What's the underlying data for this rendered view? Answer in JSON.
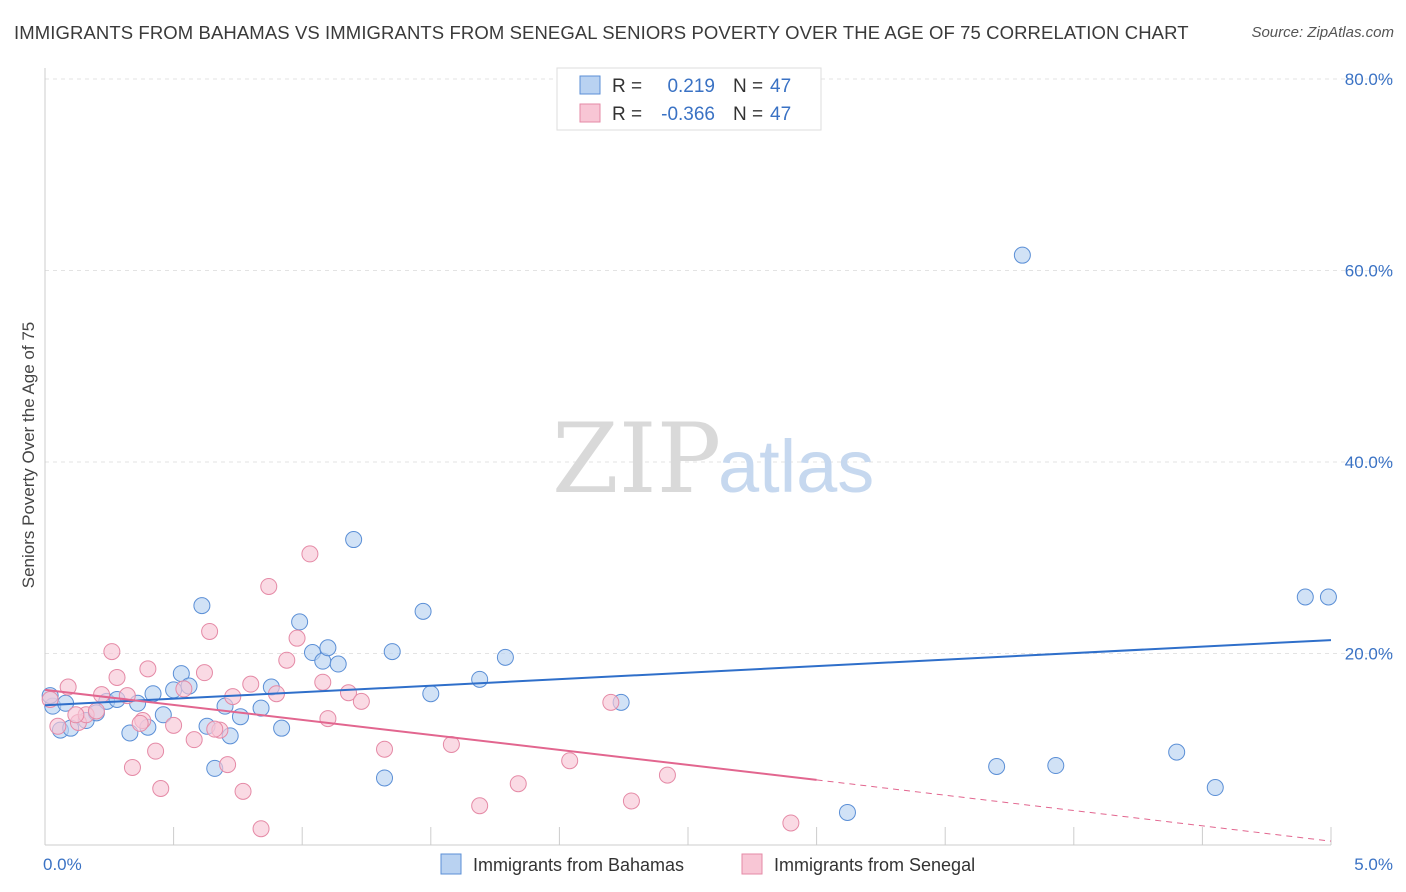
{
  "header": {
    "title": "IMMIGRANTS FROM BAHAMAS VS IMMIGRANTS FROM SENEGAL SENIORS POVERTY OVER THE AGE OF 75 CORRELATION CHART",
    "source": "Source: ZipAtlas.com"
  },
  "watermark": {
    "zip": "ZIP",
    "atlas": "atlas"
  },
  "legend": {
    "r_label": "R =",
    "n_label": "N =",
    "rows": [
      {
        "series": "Immigrants from Bahamas",
        "r": "0.219",
        "n": "47"
      },
      {
        "series": "Immigrants from Senegal",
        "r": "-0.366",
        "n": "47"
      }
    ]
  },
  "chart_data": {
    "type": "scatter",
    "title": "IMMIGRANTS FROM BAHAMAS VS IMMIGRANTS FROM SENEGAL SENIORS POVERTY OVER THE AGE OF 75 CORRELATION CHART",
    "xlabel": "",
    "ylabel": "Seniors Poverty Over the Age of 75",
    "xlim": [
      0,
      5
    ],
    "ylim": [
      0,
      80
    ],
    "x_tick_labels": [
      "0.0%",
      "5.0%"
    ],
    "y_ticks": [
      20,
      40,
      60,
      80
    ],
    "y_tick_labels": [
      "20.0%",
      "40.0%",
      "60.0%",
      "80.0%"
    ],
    "grid": true,
    "legend_position": "top-center",
    "series": [
      {
        "name": "Immigrants from Bahamas",
        "color": "#5b8fd6",
        "fill": "#b9d2f1",
        "points": [
          [
            0.03,
            14.5
          ],
          [
            0.06,
            12.0
          ],
          [
            0.08,
            14.8
          ],
          [
            0.1,
            12.2
          ],
          [
            0.16,
            13.0
          ],
          [
            0.2,
            13.8
          ],
          [
            0.24,
            15.0
          ],
          [
            0.28,
            15.2
          ],
          [
            0.33,
            11.7
          ],
          [
            0.36,
            14.8
          ],
          [
            0.4,
            12.3
          ],
          [
            0.42,
            15.8
          ],
          [
            0.46,
            13.6
          ],
          [
            0.5,
            16.2
          ],
          [
            0.53,
            17.9
          ],
          [
            0.56,
            16.6
          ],
          [
            0.61,
            25.0
          ],
          [
            0.63,
            12.4
          ],
          [
            0.66,
            8.0
          ],
          [
            0.7,
            14.5
          ],
          [
            0.72,
            11.4
          ],
          [
            0.76,
            13.4
          ],
          [
            0.84,
            14.3
          ],
          [
            0.88,
            16.5
          ],
          [
            0.92,
            12.2
          ],
          [
            0.99,
            23.3
          ],
          [
            1.04,
            20.1
          ],
          [
            1.08,
            19.2
          ],
          [
            1.1,
            20.6
          ],
          [
            1.14,
            18.9
          ],
          [
            1.2,
            31.9
          ],
          [
            1.32,
            7.0
          ],
          [
            1.35,
            20.2
          ],
          [
            1.47,
            24.4
          ],
          [
            1.5,
            15.8
          ],
          [
            1.69,
            17.3
          ],
          [
            1.79,
            19.6
          ],
          [
            2.24,
            14.9
          ],
          [
            3.12,
            3.4
          ],
          [
            3.8,
            61.6
          ],
          [
            3.7,
            8.2
          ],
          [
            3.93,
            8.3
          ],
          [
            4.4,
            9.7
          ],
          [
            4.55,
            6.0
          ],
          [
            4.9,
            25.9
          ],
          [
            4.99,
            25.9
          ],
          [
            0.02,
            15.6
          ]
        ]
      },
      {
        "name": "Immigrants from Senegal",
        "color": "#e58aa6",
        "fill": "#f8c6d5",
        "points": [
          [
            0.02,
            15.2
          ],
          [
            0.05,
            12.4
          ],
          [
            0.09,
            16.5
          ],
          [
            0.13,
            12.8
          ],
          [
            0.16,
            13.6
          ],
          [
            0.2,
            14.0
          ],
          [
            0.22,
            15.7
          ],
          [
            0.26,
            20.2
          ],
          [
            0.28,
            17.5
          ],
          [
            0.32,
            15.6
          ],
          [
            0.34,
            8.1
          ],
          [
            0.38,
            13.0
          ],
          [
            0.4,
            18.4
          ],
          [
            0.43,
            9.8
          ],
          [
            0.45,
            5.9
          ],
          [
            0.5,
            12.5
          ],
          [
            0.54,
            16.3
          ],
          [
            0.58,
            11.0
          ],
          [
            0.62,
            18.0
          ],
          [
            0.64,
            22.3
          ],
          [
            0.68,
            12.0
          ],
          [
            0.71,
            8.4
          ],
          [
            0.73,
            15.5
          ],
          [
            0.77,
            5.6
          ],
          [
            0.8,
            16.8
          ],
          [
            0.84,
            1.7
          ],
          [
            0.87,
            27.0
          ],
          [
            0.9,
            15.8
          ],
          [
            0.94,
            19.3
          ],
          [
            0.98,
            21.6
          ],
          [
            1.03,
            30.4
          ],
          [
            1.08,
            17.0
          ],
          [
            1.1,
            13.2
          ],
          [
            1.18,
            15.9
          ],
          [
            1.23,
            15.0
          ],
          [
            1.32,
            10.0
          ],
          [
            1.58,
            10.5
          ],
          [
            1.69,
            4.1
          ],
          [
            1.84,
            6.4
          ],
          [
            2.04,
            8.8
          ],
          [
            2.2,
            14.9
          ],
          [
            2.28,
            4.6
          ],
          [
            2.42,
            7.3
          ],
          [
            2.9,
            2.3
          ],
          [
            0.66,
            12.1
          ],
          [
            0.37,
            12.7
          ],
          [
            0.12,
            13.6
          ]
        ]
      }
    ],
    "trend_lines": [
      {
        "series": "Immigrants from Bahamas",
        "x": [
          0,
          5
        ],
        "y": [
          14.6,
          21.4
        ],
        "style": "solid"
      },
      {
        "series": "Immigrants from Senegal",
        "x": [
          0,
          3.0
        ],
        "y": [
          16.2,
          6.8
        ],
        "style": "solid"
      },
      {
        "series": "Immigrants from Senegal",
        "x": [
          3.0,
          5
        ],
        "y": [
          6.8,
          0.4
        ],
        "style": "dashed"
      }
    ]
  }
}
